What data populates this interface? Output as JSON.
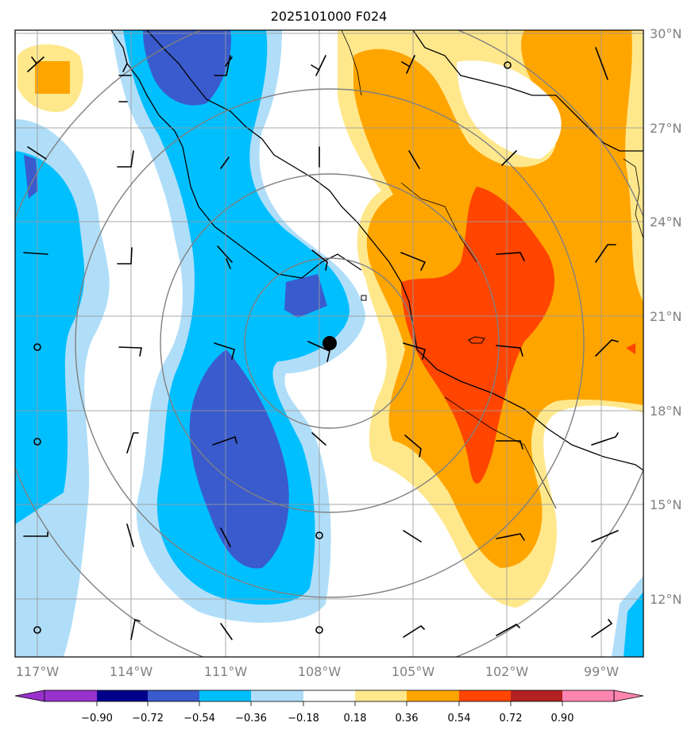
{
  "title": "2025101000 F024",
  "colors": {
    "levels": [
      "#9932cc",
      "#00008b",
      "#3a5bcd",
      "#00bfff",
      "#b0def9",
      "#ffffff",
      "#ffe88c",
      "#ffa500",
      "#ff4500",
      "#b22222",
      "#ff84b0"
    ],
    "grid": "#9a9a9a",
    "rings": "#808080",
    "coast": "#000000"
  },
  "map": {
    "lon_range": [
      -118,
      -97.5
    ],
    "lat_range": [
      10,
      30
    ],
    "latitude_labels": [
      "30°N",
      "27°N",
      "24°N",
      "21°N",
      "18°N",
      "15°N",
      "12°N"
    ],
    "longitude_labels": [
      "117°W",
      "114°W",
      "111°W",
      "108°W",
      "105°W",
      "102°W",
      "99°W"
    ],
    "storm_center": {
      "lon": -107.6,
      "lat": 20.0,
      "marker": "filled-circle"
    },
    "range_rings": 4
  },
  "colorbar": {
    "boundaries": [
      "−0.90",
      "−0.72",
      "−0.54",
      "−0.36",
      "−0.18",
      "0.18",
      "0.36",
      "0.54",
      "0.72",
      "0.90"
    ],
    "extend": "both"
  }
}
